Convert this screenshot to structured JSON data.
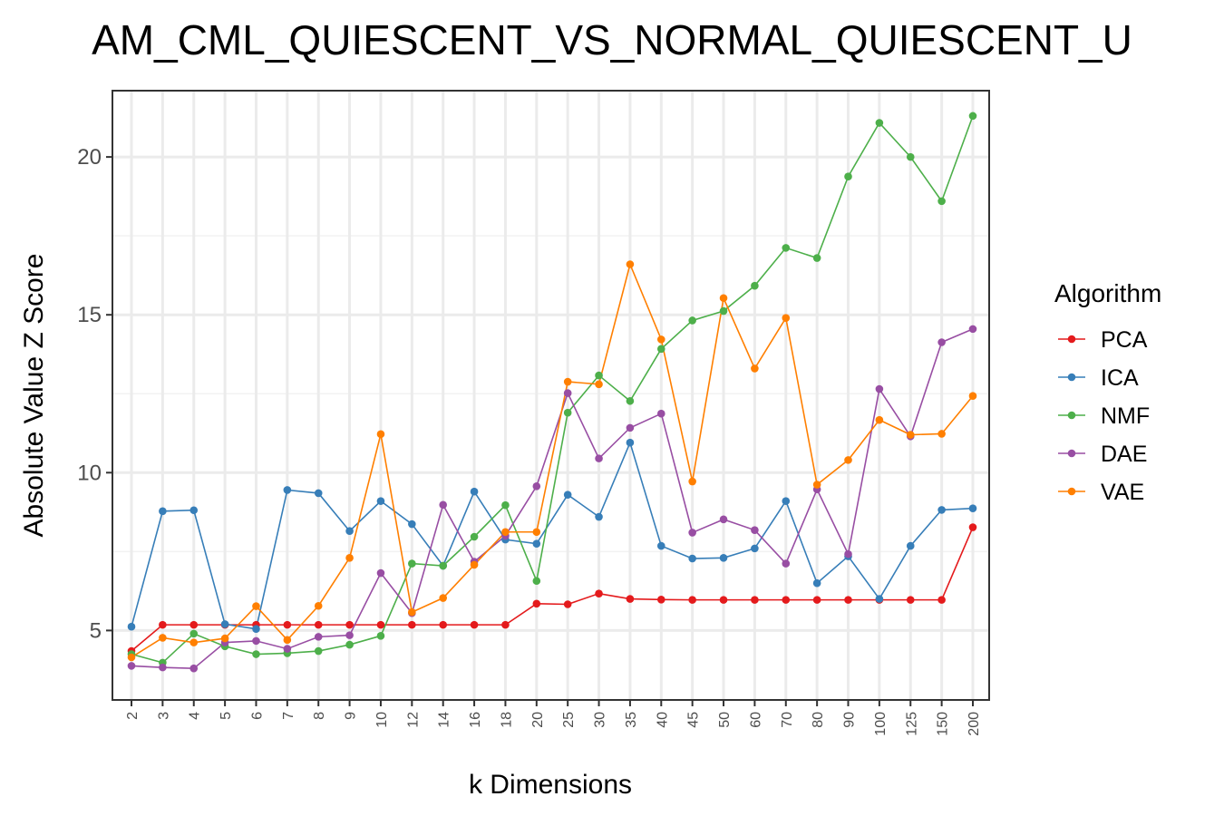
{
  "chart_data": {
    "type": "line",
    "title": "AM_CML_QUIESCENT_VS_NORMAL_QUIESCENT_U",
    "xlabel": "k Dimensions",
    "ylabel": "Absolute Value Z Score",
    "legend_title": "Algorithm",
    "legend_position": "right",
    "grid": true,
    "ylim": [
      2.8,
      22.1
    ],
    "yticks": [
      5,
      10,
      15,
      20
    ],
    "categories": [
      "2",
      "3",
      "4",
      "5",
      "6",
      "7",
      "8",
      "9",
      "10",
      "12",
      "14",
      "16",
      "18",
      "20",
      "25",
      "30",
      "35",
      "40",
      "45",
      "50",
      "60",
      "70",
      "80",
      "90",
      "100",
      "125",
      "150",
      "200"
    ],
    "series": [
      {
        "name": "PCA",
        "color": "#e41a1c",
        "values": [
          4.35,
          5.18,
          5.18,
          5.18,
          5.18,
          5.18,
          5.18,
          5.18,
          5.18,
          5.18,
          5.18,
          5.18,
          5.18,
          5.85,
          5.83,
          6.17,
          6.0,
          5.98,
          5.97,
          5.97,
          5.97,
          5.97,
          5.97,
          5.97,
          5.97,
          5.97,
          5.97,
          8.27
        ]
      },
      {
        "name": "ICA",
        "color": "#377eb8",
        "values": [
          5.12,
          8.78,
          8.81,
          5.2,
          5.05,
          9.45,
          9.35,
          8.15,
          9.1,
          8.37,
          7.05,
          9.4,
          7.88,
          7.75,
          9.3,
          8.6,
          10.95,
          7.68,
          7.28,
          7.3,
          7.6,
          9.1,
          6.5,
          7.35,
          6.0,
          7.68,
          8.82,
          8.87
        ]
      },
      {
        "name": "NMF",
        "color": "#4daf4a",
        "values": [
          4.25,
          3.98,
          4.9,
          4.5,
          4.25,
          4.28,
          4.35,
          4.55,
          4.83,
          7.12,
          7.05,
          7.97,
          8.97,
          6.57,
          11.9,
          13.08,
          12.27,
          13.92,
          14.82,
          15.12,
          15.92,
          17.12,
          16.8,
          19.38,
          21.08,
          20.0,
          18.6,
          21.3
        ]
      },
      {
        "name": "DAE",
        "color": "#984ea3",
        "values": [
          3.88,
          3.83,
          3.8,
          4.62,
          4.67,
          4.42,
          4.8,
          4.85,
          6.82,
          5.55,
          8.98,
          7.18,
          8.0,
          9.57,
          12.52,
          10.45,
          11.42,
          11.87,
          8.1,
          8.52,
          8.18,
          7.12,
          9.47,
          7.42,
          12.65,
          11.15,
          14.13,
          14.55
        ]
      },
      {
        "name": "VAE",
        "color": "#ff7f00",
        "values": [
          4.15,
          4.77,
          4.62,
          4.75,
          5.77,
          4.7,
          5.78,
          7.3,
          11.22,
          5.58,
          6.03,
          7.08,
          8.12,
          8.12,
          12.88,
          12.8,
          16.6,
          14.22,
          9.72,
          15.53,
          13.3,
          14.9,
          9.62,
          10.4,
          11.67,
          11.2,
          11.23,
          12.43
        ]
      }
    ]
  }
}
